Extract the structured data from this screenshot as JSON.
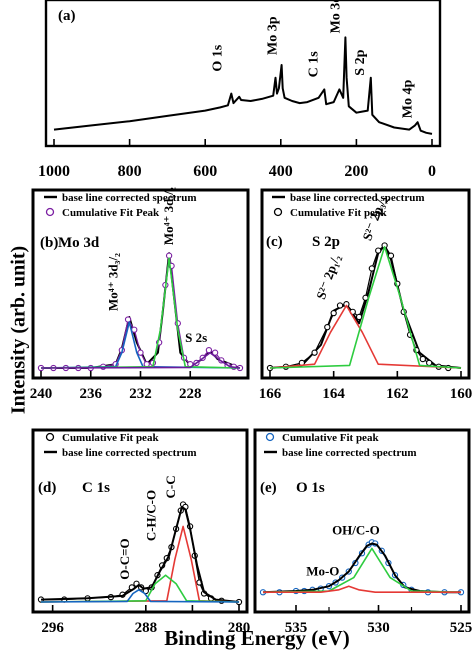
{
  "ylabel": "Intensity (arb. unit)",
  "xlabel": "Binding Energy (eV)",
  "chart_data": [
    {
      "panel": "(a)",
      "type": "line",
      "xlabel": "Binding Energy (eV)",
      "ylabel": "Intensity (arb. unit)",
      "xlim": [
        1000,
        0
      ],
      "xticks": [
        1000,
        800,
        600,
        400,
        200,
        0
      ],
      "grid": false,
      "annotations": [
        {
          "text": "O 1s",
          "x": 531
        },
        {
          "text": "Mo 3p",
          "x": 398
        },
        {
          "text": "C 1s",
          "x": 285
        },
        {
          "text": "Mo 3d",
          "x": 229
        },
        {
          "text": "S 2p",
          "x": 162
        },
        {
          "text": "Mo 4p",
          "x": 38
        }
      ],
      "series": [
        {
          "name": "",
          "color": "#000000",
          "x": [
            1000,
            900,
            800,
            700,
            600,
            560,
            540,
            531,
            525,
            510,
            505,
            480,
            450,
            420,
            414,
            410,
            405,
            398,
            395,
            390,
            370,
            350,
            330,
            300,
            285,
            280,
            260,
            245,
            235,
            229,
            226,
            220,
            200,
            185,
            170,
            162,
            158,
            140,
            100,
            60,
            45,
            38,
            30,
            15,
            0
          ],
          "y": [
            0.06,
            0.1,
            0.14,
            0.19,
            0.24,
            0.27,
            0.29,
            0.4,
            0.31,
            0.37,
            0.34,
            0.33,
            0.35,
            0.38,
            0.55,
            0.4,
            0.45,
            0.67,
            0.45,
            0.36,
            0.33,
            0.31,
            0.32,
            0.36,
            0.44,
            0.3,
            0.32,
            0.44,
            0.36,
            0.93,
            0.55,
            0.28,
            0.22,
            0.23,
            0.24,
            0.55,
            0.2,
            0.13,
            0.08,
            0.06,
            0.1,
            0.13,
            0.05,
            0.03,
            0.02
          ]
        }
      ]
    },
    {
      "panel": "(b)",
      "label": "Mo 3d",
      "type": "line",
      "xlim": [
        240,
        224
      ],
      "xticks": [
        240,
        236,
        232,
        228
      ],
      "legend": "top-left",
      "annotations": [
        {
          "text": "Mo⁴⁺ 3d₃/₂",
          "x": 232.9
        },
        {
          "text": "Mo⁴⁺ 3d₅/₂",
          "x": 229.7
        },
        {
          "text": "S 2s",
          "x": 226.4
        }
      ],
      "series": [
        {
          "name": "base line corrected spectrum",
          "color": "#000000",
          "x": [
            240,
            236,
            234,
            233.5,
            232.9,
            232.3,
            231.5,
            230.6,
            230.2,
            229.7,
            229.3,
            228.8,
            228,
            227,
            226.4,
            225.8,
            224
          ],
          "y": [
            0,
            0,
            0.03,
            0.15,
            0.4,
            0.2,
            0.03,
            0.12,
            0.45,
            0.9,
            0.55,
            0.12,
            0.02,
            0.07,
            0.14,
            0.07,
            0
          ]
        },
        {
          "name": "Cumulative Fit Peak",
          "color": "#7b1fa2",
          "marker": "circle",
          "x": [
            240,
            239,
            238,
            237,
            236,
            235,
            234,
            233.5,
            233,
            232.5,
            232,
            231.5,
            231,
            230.5,
            230,
            229.7,
            229.5,
            229,
            228.5,
            228,
            227.5,
            227,
            226.5,
            226,
            225.5,
            225,
            224.5,
            224
          ],
          "y": [
            0,
            0,
            0,
            0,
            0,
            0.01,
            0.03,
            0.14,
            0.38,
            0.3,
            0.12,
            0.03,
            0.04,
            0.2,
            0.65,
            0.88,
            0.8,
            0.35,
            0.08,
            0.03,
            0.04,
            0.08,
            0.14,
            0.12,
            0.06,
            0.02,
            0.01,
            0
          ]
        },
        {
          "name": "",
          "color": "#1565c0",
          "x": [
            240,
            234,
            233.5,
            232.9,
            232.3,
            231.8,
            224
          ],
          "y": [
            0,
            0.01,
            0.12,
            0.36,
            0.12,
            0.01,
            0
          ]
        },
        {
          "name": "",
          "color": "#2ecc40",
          "x": [
            240,
            231,
            230.4,
            229.7,
            229,
            228.4,
            224
          ],
          "y": [
            0,
            0.01,
            0.3,
            0.86,
            0.3,
            0.01,
            0
          ]
        },
        {
          "name": "",
          "color": "#6a1b9a",
          "x": [
            240,
            228,
            227.2,
            226.4,
            225.6,
            224.8,
            224
          ],
          "y": [
            0,
            0.005,
            0.06,
            0.12,
            0.06,
            0.01,
            0
          ]
        }
      ]
    },
    {
      "panel": "(c)",
      "label": "S 2p",
      "type": "line",
      "xlim": [
        166,
        160
      ],
      "xticks": [
        166,
        164,
        162,
        160
      ],
      "legend": "top-left",
      "annotations": [
        {
          "text": "S²⁻ 2p₁/₂",
          "x": 163.6
        },
        {
          "text": "S²⁻ 2p₃/₂",
          "x": 162.4
        }
      ],
      "series": [
        {
          "name": "base line corrected spectrum",
          "color": "#000000",
          "x": [
            166,
            165,
            164.4,
            164,
            163.6,
            163.2,
            162.9,
            162.6,
            162.4,
            162.2,
            161.8,
            161.3,
            160.8,
            160
          ],
          "y": [
            0,
            0.02,
            0.18,
            0.45,
            0.5,
            0.35,
            0.6,
            0.9,
            0.96,
            0.85,
            0.45,
            0.12,
            0.02,
            0
          ]
        },
        {
          "name": "Cumulative Fit peak",
          "color": "#000000",
          "marker": "circle",
          "x": [
            166,
            165.5,
            165,
            164.6,
            164.2,
            164,
            163.8,
            163.6,
            163.4,
            163.2,
            163,
            162.8,
            162.6,
            162.4,
            162.2,
            162,
            161.8,
            161.6,
            161.4,
            161.2,
            161,
            160.7,
            160.4
          ],
          "y": [
            0,
            0.01,
            0.04,
            0.12,
            0.32,
            0.43,
            0.49,
            0.5,
            0.44,
            0.4,
            0.55,
            0.78,
            0.92,
            0.96,
            0.88,
            0.66,
            0.44,
            0.26,
            0.14,
            0.07,
            0.04,
            0.01,
            0
          ]
        },
        {
          "name": "",
          "color": "#e53935",
          "x": [
            166,
            164.6,
            164.1,
            163.6,
            163.1,
            162.6,
            160
          ],
          "y": [
            0,
            0.03,
            0.28,
            0.49,
            0.28,
            0.03,
            0
          ]
        },
        {
          "name": "",
          "color": "#2ecc40",
          "x": [
            166,
            163.5,
            162.9,
            162.4,
            161.9,
            161.3,
            160
          ],
          "y": [
            0,
            0.02,
            0.55,
            0.95,
            0.55,
            0.02,
            0
          ]
        }
      ]
    },
    {
      "panel": "(d)",
      "label": "C 1s",
      "type": "line",
      "xlim": [
        297,
        280
      ],
      "xticks": [
        296,
        288,
        284,
        280
      ],
      "tick_labels": [
        "296",
        "288",
        "",
        "280"
      ],
      "legend": "top-left",
      "annotations": [
        {
          "text": "O-C=O",
          "x": 288.6
        },
        {
          "text": "C-H/C-O",
          "x": 286.3
        },
        {
          "text": "C-C",
          "x": 284.8
        }
      ],
      "series": [
        {
          "name": "Cumulative Fit peak",
          "color": "#000000",
          "marker": "circle",
          "x": [
            297,
            295,
            293,
            291,
            290,
            289.2,
            288.8,
            288.4,
            288,
            287.5,
            287,
            286.6,
            286.2,
            285.8,
            285.4,
            285,
            284.8,
            284.6,
            284.2,
            283.8,
            283.4,
            283,
            282.4,
            281.5,
            280
          ],
          "y": [
            0.02,
            0.02,
            0.03,
            0.04,
            0.06,
            0.12,
            0.15,
            0.12,
            0.09,
            0.12,
            0.22,
            0.3,
            0.36,
            0.45,
            0.6,
            0.75,
            0.8,
            0.78,
            0.62,
            0.38,
            0.16,
            0.07,
            0.03,
            0.01,
            0
          ]
        },
        {
          "name": "base line corrected spectrum",
          "color": "#000000",
          "x": [
            297,
            293,
            290,
            289,
            288.6,
            288.2,
            287.5,
            286.8,
            286,
            285.4,
            284.9,
            284.6,
            284.2,
            283.6,
            283,
            282,
            280
          ],
          "y": [
            0.02,
            0.03,
            0.05,
            0.11,
            0.14,
            0.11,
            0.12,
            0.25,
            0.38,
            0.6,
            0.78,
            0.76,
            0.6,
            0.3,
            0.08,
            0.02,
            0
          ]
        },
        {
          "name": "",
          "color": "#e53935",
          "x": [
            297,
            286.2,
            285.5,
            284.8,
            284.1,
            283.4,
            280
          ],
          "y": [
            0,
            0.01,
            0.35,
            0.62,
            0.35,
            0.01,
            0
          ]
        },
        {
          "name": "",
          "color": "#2ecc40",
          "x": [
            297,
            288,
            287.2,
            286.3,
            285.4,
            284.5,
            280
          ],
          "y": [
            0,
            0.01,
            0.15,
            0.22,
            0.15,
            0.01,
            0
          ]
        },
        {
          "name": "",
          "color": "#1565c0",
          "x": [
            297,
            289.6,
            289.1,
            288.6,
            288.1,
            287.6,
            280
          ],
          "y": [
            0,
            0.005,
            0.07,
            0.1,
            0.07,
            0.005,
            0
          ]
        }
      ]
    },
    {
      "panel": "(e)",
      "label": "O 1s",
      "type": "line",
      "xlim": [
        537,
        525
      ],
      "xticks": [
        535,
        530,
        525
      ],
      "tick_labels": [
        "535",
        "530",
        "525"
      ],
      "minor_ticks": [
        533,
        528
      ],
      "minor_tick_labels": [
        "",
        ""
      ],
      "legend": "top-left",
      "annotations": [
        {
          "text": "Mo-O",
          "x": 531.8
        },
        {
          "text": "OH/C-O",
          "x": 530.4
        }
      ],
      "series": [
        {
          "name": "Cumulative Fit peak",
          "color": "#1565c0",
          "marker": "circle",
          "x": [
            537,
            536,
            535,
            534.5,
            534,
            533.5,
            533,
            532.6,
            532.2,
            531.8,
            531.4,
            531,
            530.6,
            530.4,
            530.2,
            529.8,
            529.4,
            529,
            528.5,
            528,
            527,
            526,
            525
          ],
          "y": [
            0.08,
            0.08,
            0.09,
            0.09,
            0.1,
            0.11,
            0.13,
            0.16,
            0.2,
            0.25,
            0.32,
            0.4,
            0.47,
            0.49,
            0.48,
            0.42,
            0.32,
            0.22,
            0.14,
            0.1,
            0.08,
            0.08,
            0.08
          ]
        },
        {
          "name": "base line corrected spectrum",
          "color": "#000000",
          "x": [
            537,
            535,
            534,
            533,
            532.4,
            531.8,
            531.2,
            530.7,
            530.4,
            530.1,
            529.6,
            529,
            528.4,
            527.5,
            526,
            525
          ],
          "y": [
            0.08,
            0.09,
            0.1,
            0.13,
            0.18,
            0.25,
            0.37,
            0.46,
            0.48,
            0.47,
            0.38,
            0.22,
            0.12,
            0.09,
            0.08,
            0.08
          ]
        },
        {
          "name": "",
          "color": "#2ecc40",
          "x": [
            537,
            533,
            531.5,
            530.4,
            529.3,
            528,
            525
          ],
          "y": [
            0.08,
            0.09,
            0.2,
            0.44,
            0.2,
            0.09,
            0.08
          ]
        },
        {
          "name": "",
          "color": "#e53935",
          "x": [
            537,
            533.5,
            532.4,
            531.8,
            531.2,
            530.2,
            525
          ],
          "y": [
            0.08,
            0.08,
            0.1,
            0.13,
            0.1,
            0.08,
            0.08
          ]
        }
      ]
    }
  ]
}
